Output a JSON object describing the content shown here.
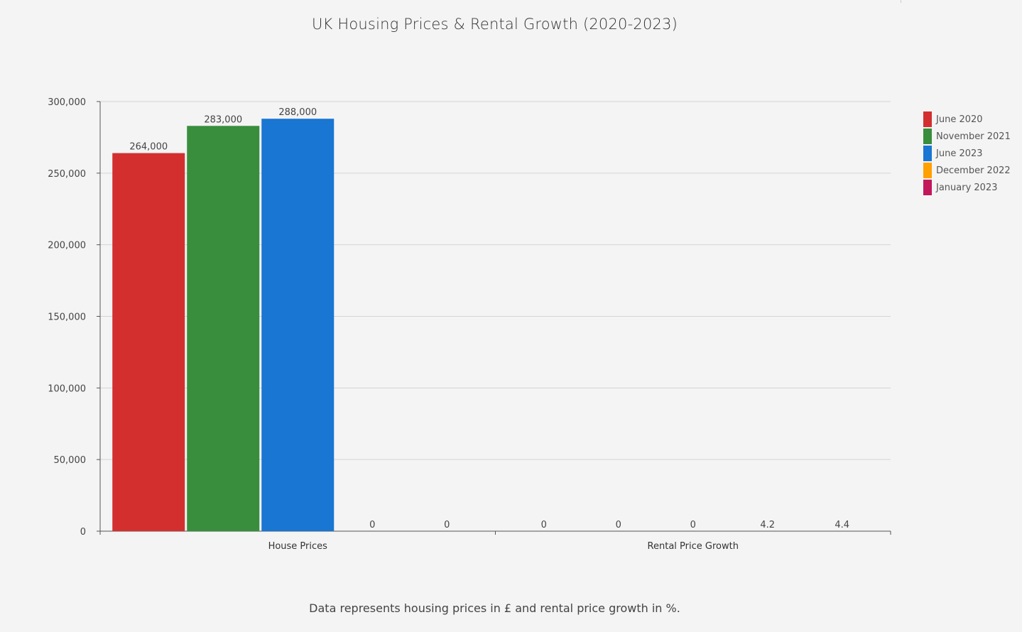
{
  "chart_data": {
    "type": "bar",
    "title": "UK Housing Prices & Rental Growth (2020-2023)",
    "footer": "Data represents housing prices in £ and rental price growth in %.",
    "categories": [
      "House Prices",
      "Rental Price Growth"
    ],
    "series": [
      {
        "name": "June 2020",
        "color": "#d32f2f",
        "values": [
          264000,
          0
        ]
      },
      {
        "name": "November 2021",
        "color": "#388e3c",
        "values": [
          283000,
          0
        ]
      },
      {
        "name": "June 2023",
        "color": "#1976d2",
        "values": [
          288000,
          0
        ]
      },
      {
        "name": "December 2022",
        "color": "#ffa000",
        "values": [
          0,
          4.2
        ]
      },
      {
        "name": "January 2023",
        "color": "#c2185b",
        "values": [
          0,
          4.4
        ]
      }
    ],
    "data_labels": [
      [
        "264,000",
        "283,000",
        "288,000",
        "0",
        "0"
      ],
      [
        "0",
        "0",
        "0",
        "4.2",
        "4.4"
      ]
    ],
    "ylim": [
      0,
      300000
    ],
    "yticks": [
      0,
      50000,
      100000,
      150000,
      200000,
      250000,
      300000
    ],
    "ytick_labels": [
      "0",
      "50,000",
      "100,000",
      "150,000",
      "200,000",
      "250,000",
      "300,000"
    ],
    "grid": true,
    "legend_position": "right"
  }
}
